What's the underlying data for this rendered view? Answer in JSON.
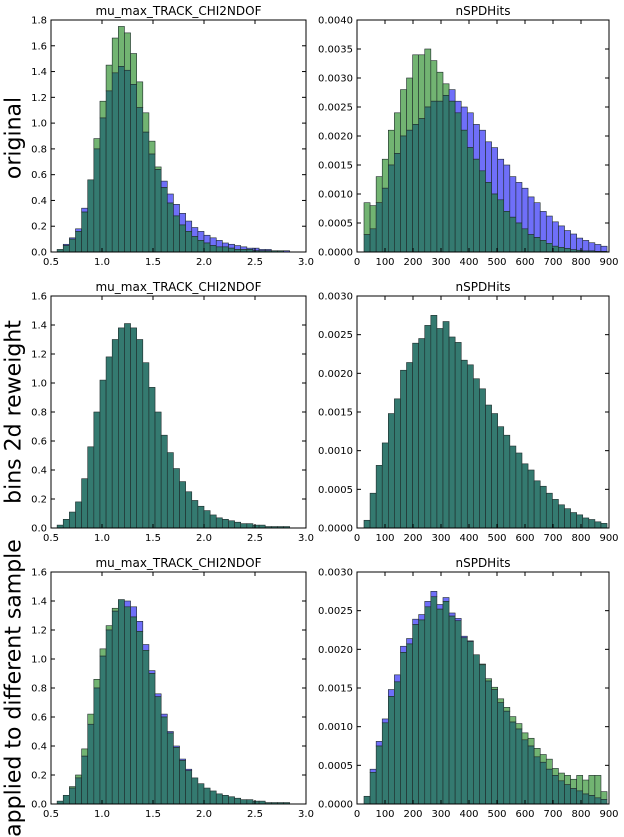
{
  "colors": {
    "series_a": "#6f6ff9",
    "series_b": "#72b472",
    "overlap": "#347a70",
    "axes": "#000000",
    "edge": "#1e2a2a"
  },
  "row_labels": [
    "original",
    "bins 2d reweight",
    "applied to different sample"
  ],
  "chart_data": [
    {
      "type": "bar",
      "title": "mu_max_TRACK_CHI2NDOF",
      "xlim": [
        0.5,
        3.0
      ],
      "ylim": [
        0,
        1.8
      ],
      "xticks": [
        "0.5",
        "1.0",
        "1.5",
        "2.0",
        "2.5",
        "3.0"
      ],
      "yticks": [
        "0.0",
        "0.2",
        "0.4",
        "0.6",
        "0.8",
        "1.0",
        "1.2",
        "1.4",
        "1.6",
        "1.8"
      ],
      "bin_start": 0.5,
      "bin_width": 0.06,
      "series": [
        {
          "color": "#6f6ff9",
          "values": [
            0,
            0.02,
            0.06,
            0.11,
            0.18,
            0.34,
            0.56,
            0.8,
            1.04,
            1.25,
            1.39,
            1.44,
            1.41,
            1.3,
            1.12,
            0.93,
            0.76,
            0.64,
            0.55,
            0.45,
            0.37,
            0.3,
            0.24,
            0.19,
            0.16,
            0.13,
            0.11,
            0.09,
            0.07,
            0.06,
            0.05,
            0.04,
            0.03,
            0.03,
            0.02,
            0.02,
            0.01,
            0.01,
            0.01,
            0
          ]
        },
        {
          "color": "#72b472",
          "values": [
            0,
            0.02,
            0.05,
            0.1,
            0.16,
            0.31,
            0.56,
            0.88,
            1.17,
            1.45,
            1.66,
            1.75,
            1.7,
            1.54,
            1.32,
            1.08,
            0.86,
            0.66,
            0.5,
            0.38,
            0.28,
            0.21,
            0.16,
            0.12,
            0.09,
            0.07,
            0.05,
            0.04,
            0.04,
            0.03,
            0.02,
            0.02,
            0.02,
            0.01,
            0.01,
            0.01,
            0.01,
            0.01,
            0,
            0
          ]
        }
      ]
    },
    {
      "type": "bar",
      "title": "nSPDHits",
      "xlim": [
        0,
        900
      ],
      "ylim": [
        0,
        0.004
      ],
      "xticks": [
        "0",
        "100",
        "200",
        "300",
        "400",
        "500",
        "600",
        "700",
        "800",
        "900"
      ],
      "yticks": [
        "0.0000",
        "0.0005",
        "0.0010",
        "0.0015",
        "0.0020",
        "0.0025",
        "0.0030",
        "0.0035",
        "0.0040"
      ],
      "bin_start": 25,
      "bin_width": 21.7,
      "series": [
        {
          "color": "#6f6ff9",
          "values": [
            0.0003,
            0.0004,
            0.00085,
            0.0011,
            0.0015,
            0.0017,
            0.002,
            0.0021,
            0.0022,
            0.0023,
            0.0025,
            0.0026,
            0.0026,
            0.0027,
            0.0028,
            0.0026,
            0.0025,
            0.0024,
            0.0022,
            0.0021,
            0.0019,
            0.0018,
            0.0016,
            0.0015,
            0.0013,
            0.0012,
            0.0011,
            0.00095,
            0.00085,
            0.0007,
            0.00062,
            0.00052,
            0.00045,
            0.00037,
            0.00031,
            0.00024,
            0.0002,
            0.00016,
            0.00013,
            0.0001,
            8e-05,
            5e-05
          ]
        },
        {
          "color": "#72b472",
          "values": [
            0.00085,
            0.0008,
            0.0013,
            0.0016,
            0.0021,
            0.0024,
            0.0028,
            0.003,
            0.0034,
            0.0034,
            0.0035,
            0.0033,
            0.0031,
            0.0029,
            0.0026,
            0.0024,
            0.0021,
            0.0018,
            0.0016,
            0.0014,
            0.0012,
            0.001,
            0.0009,
            0.0007,
            0.0006,
            0.0005,
            0.0004,
            0.0003,
            0.00025,
            0.0002,
            0.00015,
            0.0001,
            8e-05,
            6e-05,
            4e-05,
            3e-05,
            2e-05,
            2e-05,
            1e-05,
            1e-05,
            0,
            0
          ]
        }
      ]
    },
    {
      "type": "bar",
      "title": "mu_max_TRACK_CHI2NDOF",
      "xlim": [
        0.5,
        3.0
      ],
      "ylim": [
        0,
        1.6
      ],
      "xticks": [
        "0.5",
        "1.0",
        "1.5",
        "2.0",
        "2.5",
        "3.0"
      ],
      "yticks": [
        "0.0",
        "0.2",
        "0.4",
        "0.6",
        "0.8",
        "1.0",
        "1.2",
        "1.4",
        "1.6"
      ],
      "bin_start": 0.5,
      "bin_width": 0.06,
      "series": [
        {
          "color": "#6f6ff9",
          "values": [
            0,
            0.02,
            0.06,
            0.11,
            0.18,
            0.34,
            0.56,
            0.8,
            1.02,
            1.18,
            1.3,
            1.38,
            1.41,
            1.38,
            1.3,
            1.14,
            0.97,
            0.8,
            0.64,
            0.52,
            0.41,
            0.32,
            0.25,
            0.19,
            0.15,
            0.12,
            0.09,
            0.07,
            0.06,
            0.05,
            0.04,
            0.03,
            0.03,
            0.02,
            0.02,
            0.01,
            0.01,
            0.01,
            0.01,
            0
          ]
        },
        {
          "color": "#72b472",
          "values": [
            0,
            0.02,
            0.06,
            0.11,
            0.18,
            0.34,
            0.56,
            0.8,
            1.02,
            1.18,
            1.3,
            1.38,
            1.41,
            1.38,
            1.3,
            1.14,
            0.97,
            0.8,
            0.64,
            0.52,
            0.41,
            0.32,
            0.25,
            0.19,
            0.15,
            0.12,
            0.09,
            0.07,
            0.06,
            0.05,
            0.04,
            0.03,
            0.03,
            0.02,
            0.02,
            0.01,
            0.01,
            0.01,
            0.01,
            0
          ]
        }
      ]
    },
    {
      "type": "bar",
      "title": "nSPDHits",
      "xlim": [
        0,
        900
      ],
      "ylim": [
        0,
        0.003
      ],
      "xticks": [
        "0",
        "100",
        "200",
        "300",
        "400",
        "500",
        "600",
        "700",
        "800",
        "900"
      ],
      "yticks": [
        "0.0000",
        "0.0005",
        "0.0010",
        "0.0015",
        "0.0020",
        "0.0025",
        "0.0030"
      ],
      "bin_start": 25,
      "bin_width": 21.7,
      "series": [
        {
          "color": "#6f6ff9",
          "values": [
            0.0001,
            0.00045,
            0.00081,
            0.0011,
            0.00148,
            0.00167,
            0.00204,
            0.00214,
            0.00239,
            0.00245,
            0.00262,
            0.00275,
            0.00258,
            0.00267,
            0.00247,
            0.0024,
            0.00217,
            0.00211,
            0.00193,
            0.0018,
            0.00159,
            0.00148,
            0.00131,
            0.0012,
            0.00106,
            0.00097,
            0.00083,
            0.00075,
            0.00061,
            0.00054,
            0.00045,
            0.00037,
            0.0003,
            0.00025,
            0.0002,
            0.00017,
            0.00013,
            0.00011,
            8e-05,
            6e-05,
            4e-05,
            3e-05
          ]
        },
        {
          "color": "#72b472",
          "values": [
            0.0001,
            0.00045,
            0.00081,
            0.0011,
            0.00148,
            0.00167,
            0.00204,
            0.00214,
            0.00239,
            0.00245,
            0.00262,
            0.00275,
            0.00258,
            0.00267,
            0.00247,
            0.0024,
            0.00217,
            0.00211,
            0.00193,
            0.0018,
            0.00159,
            0.00148,
            0.00131,
            0.0012,
            0.00106,
            0.00097,
            0.00083,
            0.00075,
            0.00061,
            0.00054,
            0.00045,
            0.00037,
            0.0003,
            0.00025,
            0.0002,
            0.00017,
            0.00013,
            0.00011,
            8e-05,
            6e-05,
            4e-05,
            3e-05
          ]
        }
      ]
    },
    {
      "type": "bar",
      "title": "mu_max_TRACK_CHI2NDOF",
      "xlim": [
        0.5,
        3.0
      ],
      "ylim": [
        0,
        1.6
      ],
      "xticks": [
        "0.5",
        "1.0",
        "1.5",
        "2.0",
        "2.5",
        "3.0"
      ],
      "yticks": [
        "0.0",
        "0.2",
        "0.4",
        "0.6",
        "0.8",
        "1.0",
        "1.2",
        "1.4",
        "1.6"
      ],
      "bin_start": 0.5,
      "bin_width": 0.06,
      "series": [
        {
          "color": "#6f6ff9",
          "values": [
            0,
            0.02,
            0.06,
            0.11,
            0.18,
            0.33,
            0.55,
            0.8,
            1.02,
            1.2,
            1.33,
            1.41,
            1.4,
            1.36,
            1.26,
            1.1,
            0.92,
            0.76,
            0.62,
            0.5,
            0.4,
            0.31,
            0.24,
            0.18,
            0.14,
            0.11,
            0.09,
            0.07,
            0.06,
            0.05,
            0.04,
            0.03,
            0.03,
            0.02,
            0.02,
            0.01,
            0.01,
            0.01,
            0.01,
            0
          ]
        },
        {
          "color": "#72b472",
          "values": [
            0,
            0.02,
            0.06,
            0.12,
            0.2,
            0.38,
            0.62,
            0.86,
            1.07,
            1.23,
            1.35,
            1.41,
            1.36,
            1.29,
            1.19,
            1.06,
            0.9,
            0.74,
            0.6,
            0.49,
            0.39,
            0.3,
            0.23,
            0.18,
            0.14,
            0.11,
            0.09,
            0.07,
            0.06,
            0.05,
            0.04,
            0.03,
            0.03,
            0.02,
            0.02,
            0.01,
            0.01,
            0.01,
            0.01,
            0
          ]
        }
      ]
    },
    {
      "type": "bar",
      "title": "nSPDHits",
      "xlim": [
        0,
        900
      ],
      "ylim": [
        0,
        0.003
      ],
      "xticks": [
        "0",
        "100",
        "200",
        "300",
        "400",
        "500",
        "600",
        "700",
        "800",
        "900"
      ],
      "yticks": [
        "0.0000",
        "0.0005",
        "0.0010",
        "0.0015",
        "0.0020",
        "0.0025",
        "0.0030"
      ],
      "bin_start": 25,
      "bin_width": 21.7,
      "series": [
        {
          "color": "#6f6ff9",
          "values": [
            0.0001,
            0.00045,
            0.00081,
            0.0011,
            0.00148,
            0.00167,
            0.00204,
            0.00214,
            0.00239,
            0.00245,
            0.00262,
            0.00275,
            0.00258,
            0.00267,
            0.00247,
            0.0024,
            0.00217,
            0.00211,
            0.00193,
            0.0018,
            0.00159,
            0.00148,
            0.00131,
            0.0012,
            0.00106,
            0.00097,
            0.00083,
            0.00075,
            0.00061,
            0.00054,
            0.00045,
            0.00037,
            0.0003,
            0.00025,
            0.0002,
            0.00017,
            0.00013,
            0.00011,
            8e-05,
            6e-05,
            4e-05,
            3e-05
          ]
        },
        {
          "color": "#72b472",
          "values": [
            0.0001,
            0.00041,
            0.00075,
            0.00105,
            0.00139,
            0.00158,
            0.00196,
            0.00207,
            0.00232,
            0.00238,
            0.00255,
            0.00268,
            0.00252,
            0.00262,
            0.00243,
            0.00237,
            0.00215,
            0.0021,
            0.00193,
            0.00181,
            0.00162,
            0.00151,
            0.00136,
            0.00125,
            0.00113,
            0.00104,
            0.00092,
            0.00085,
            0.00072,
            0.00064,
            0.00058,
            0.00046,
            0.0004,
            0.00037,
            0.00032,
            0.00037,
            0.00031,
            0.00037,
            0.00037,
            0.00016,
            8e-05,
            4e-05
          ]
        }
      ]
    }
  ]
}
